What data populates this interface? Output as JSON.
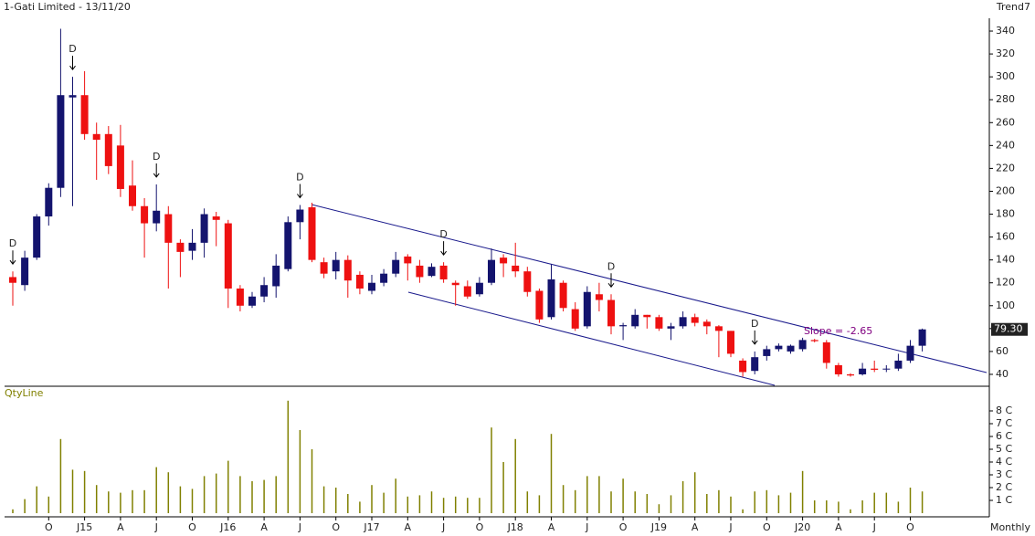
{
  "chart_data": [
    {
      "type": "candlestick",
      "title": "1-Gati Limited - 13/11/20",
      "subtitle": "Trend7",
      "period_label": "Monthly",
      "categories": [
        null,
        null,
        null,
        "O",
        null,
        null,
        "J15",
        null,
        null,
        "A",
        null,
        null,
        "J",
        null,
        null,
        "O",
        null,
        null,
        "J16",
        null,
        null,
        "A",
        null,
        null,
        "J",
        null,
        null,
        "O",
        null,
        null,
        "J17",
        null,
        null,
        "A",
        null,
        null,
        "J",
        null,
        null,
        "O",
        null,
        null,
        "J18",
        null,
        null,
        "A",
        null,
        null,
        "J",
        null,
        null,
        "O",
        null,
        null,
        "J19",
        null,
        null,
        "A",
        null,
        null,
        "J",
        null,
        null,
        "O",
        null,
        null,
        "J20",
        null,
        null,
        "A",
        null,
        null,
        "J",
        null,
        null,
        "O",
        null
      ],
      "open": [
        125,
        118,
        142,
        178,
        203,
        282,
        284,
        250,
        250,
        240,
        205,
        187,
        172,
        180,
        155,
        148,
        155,
        178,
        172,
        115,
        100,
        108,
        117,
        132,
        173,
        186,
        138,
        130,
        140,
        127,
        113,
        120,
        128,
        143,
        135,
        126,
        135,
        120,
        117,
        110,
        120,
        142,
        135,
        130,
        113,
        90,
        120,
        97,
        82,
        110,
        105,
        82,
        82,
        92,
        90,
        80,
        82,
        90,
        86,
        82,
        78,
        52,
        43,
        56,
        62,
        60,
        62,
        70,
        68,
        48,
        40,
        40,
        45,
        45,
        45,
        52,
        65
      ],
      "high": [
        130,
        148,
        180,
        207,
        342,
        300,
        305,
        260,
        257,
        258,
        227,
        194,
        206,
        187,
        158,
        167,
        185,
        182,
        175,
        118,
        112,
        125,
        145,
        178,
        188,
        190,
        142,
        147,
        144,
        130,
        127,
        132,
        147,
        145,
        140,
        137,
        138,
        122,
        122,
        125,
        150,
        145,
        155,
        134,
        115,
        136,
        122,
        103,
        117,
        120,
        110,
        85,
        97,
        92,
        92,
        85,
        95,
        93,
        88,
        83,
        78,
        54,
        60,
        65,
        67,
        66,
        72,
        71,
        70,
        50,
        41,
        50,
        52,
        48,
        58,
        70,
        80
      ],
      "low": [
        100,
        113,
        140,
        170,
        195,
        187,
        245,
        210,
        215,
        195,
        183,
        142,
        165,
        115,
        125,
        140,
        142,
        152,
        98,
        95,
        98,
        103,
        107,
        130,
        158,
        138,
        124,
        123,
        107,
        110,
        110,
        117,
        125,
        122,
        120,
        125,
        120,
        100,
        106,
        108,
        118,
        125,
        125,
        108,
        85,
        88,
        95,
        78,
        80,
        95,
        75,
        70,
        80,
        80,
        78,
        70,
        80,
        82,
        75,
        55,
        55,
        38,
        40,
        52,
        60,
        58,
        60,
        68,
        45,
        38,
        38,
        39,
        42,
        42,
        43,
        50,
        60
      ],
      "close": [
        120,
        142,
        178,
        203,
        284,
        284,
        250,
        245,
        222,
        202,
        187,
        172,
        183,
        155,
        147,
        155,
        180,
        175,
        115,
        100,
        108,
        118,
        135,
        173,
        184,
        140,
        128,
        140,
        122,
        115,
        120,
        128,
        140,
        137,
        125,
        134,
        123,
        118,
        108,
        120,
        140,
        137,
        130,
        112,
        88,
        123,
        98,
        80,
        112,
        105,
        82,
        83,
        92,
        90,
        80,
        82,
        90,
        85,
        82,
        78,
        58,
        42,
        55,
        62,
        65,
        65,
        70,
        69,
        50,
        40,
        39,
        45,
        44,
        45,
        52,
        65,
        79.3
      ],
      "last_label": "79.30",
      "up_color": "#14146e",
      "down_color": "#ee1111",
      "marker_text": "D",
      "marker_indices": [
        0,
        5,
        12,
        24,
        36,
        50,
        62
      ],
      "annotation": "Slope = -2.65",
      "ylim": [
        30,
        350
      ],
      "yticks": [
        40,
        60,
        80,
        100,
        120,
        140,
        160,
        180,
        200,
        220,
        240,
        260,
        280,
        300,
        320,
        340
      ]
    },
    {
      "type": "bar",
      "title": "QtyLine",
      "color": "#808000",
      "values": [
        0.3,
        1.1,
        2.1,
        1.3,
        5.8,
        3.4,
        3.3,
        2.2,
        1.7,
        1.6,
        1.8,
        1.8,
        3.6,
        3.2,
        2.1,
        1.9,
        2.9,
        3.1,
        4.1,
        2.9,
        2.5,
        2.6,
        2.9,
        8.8,
        6.5,
        5.0,
        2.1,
        2.0,
        1.5,
        0.9,
        2.2,
        1.6,
        2.7,
        1.3,
        1.4,
        1.7,
        1.2,
        1.3,
        1.2,
        1.2,
        6.7,
        4.0,
        5.8,
        1.7,
        1.4,
        6.2,
        2.2,
        1.8,
        2.9,
        2.9,
        1.7,
        2.7,
        1.7,
        1.5,
        0.7,
        1.4,
        2.5,
        3.2,
        1.5,
        1.8,
        1.3,
        0.3,
        1.7,
        1.8,
        1.4,
        1.6,
        3.3,
        1.0,
        1.0,
        0.9,
        0.3,
        1.0,
        1.6,
        1.6,
        0.9,
        2.0,
        1.7
      ],
      "ylim": [
        0,
        9
      ],
      "yticks": [
        {
          "value": 1,
          "label": "1 C"
        },
        {
          "value": 2,
          "label": "2 C"
        },
        {
          "value": 3,
          "label": "3 C"
        },
        {
          "value": 4,
          "label": "4 C"
        },
        {
          "value": 5,
          "label": "5 C"
        },
        {
          "value": 6,
          "label": "6 C"
        },
        {
          "value": 7,
          "label": "7 C"
        },
        {
          "value": 8,
          "label": "8 C"
        }
      ]
    }
  ]
}
